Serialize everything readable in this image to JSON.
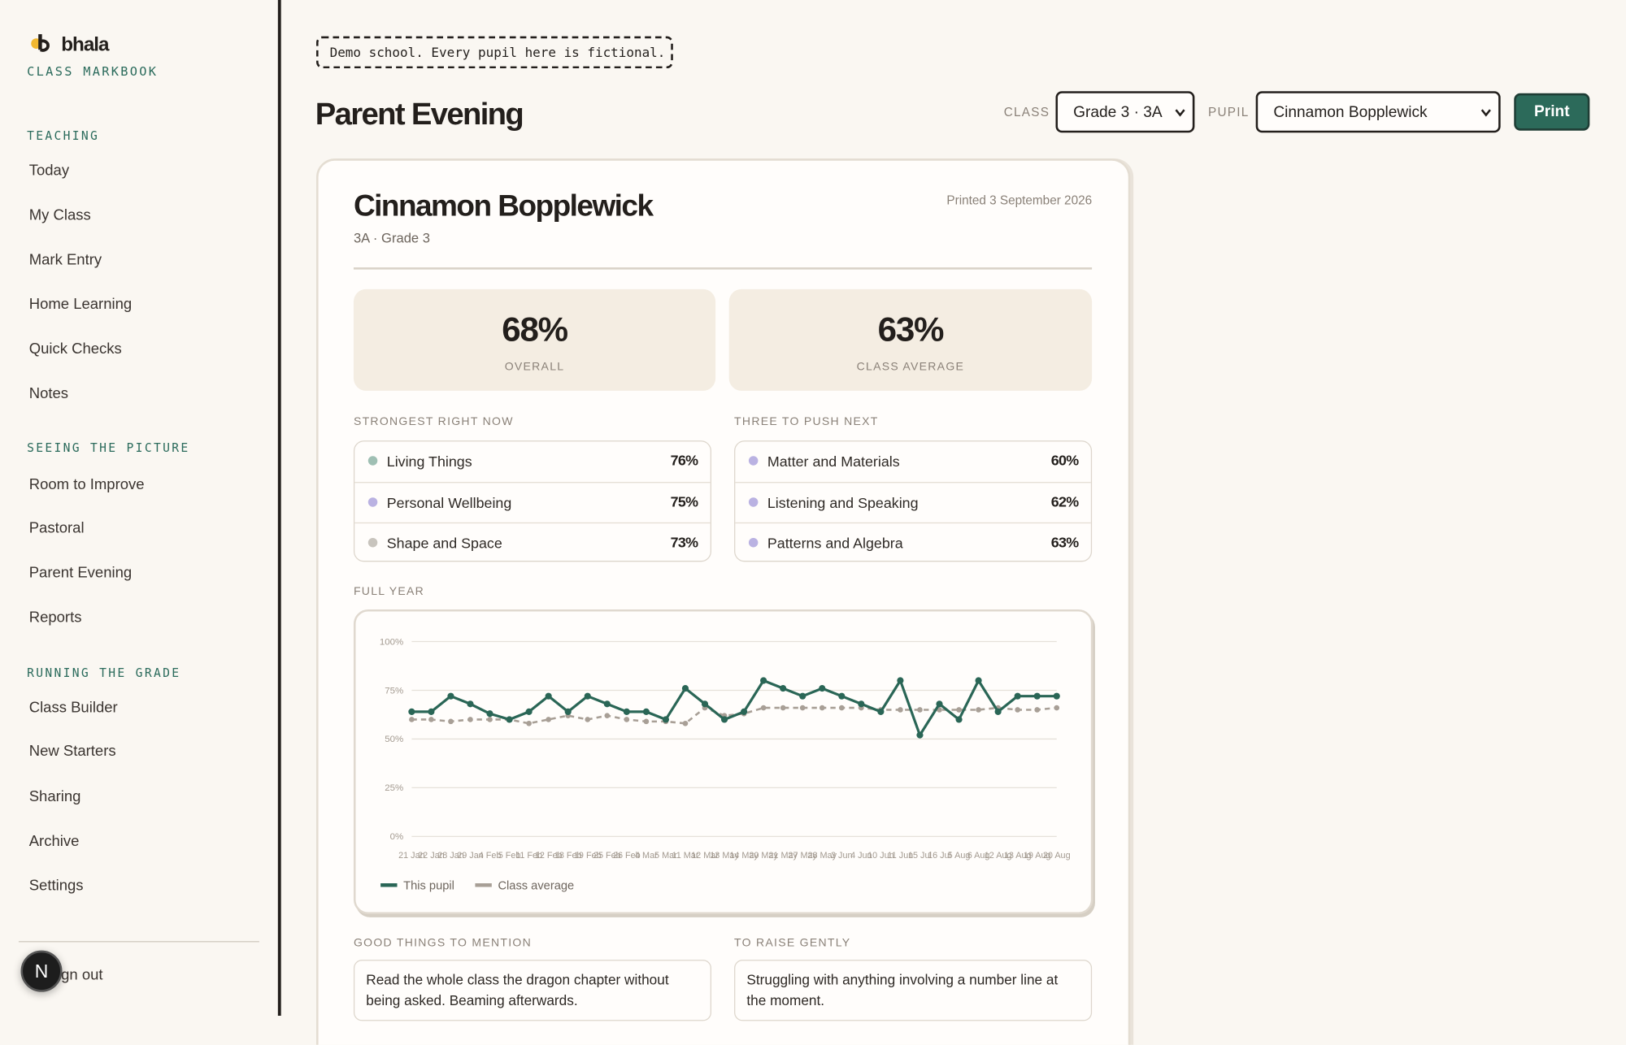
{
  "sidebar": {
    "brand": "bhala",
    "subtitle": "CLASS MARKBOOK",
    "sections": [
      {
        "heading": "TEACHING",
        "items": [
          "Today",
          "My Class",
          "Mark Entry",
          "Home Learning",
          "Quick Checks",
          "Notes"
        ]
      },
      {
        "heading": "SEEING THE PICTURE",
        "items": [
          "Room to Improve",
          "Pastoral",
          "Parent Evening",
          "Reports"
        ]
      },
      {
        "heading": "RUNNING THE GRADE",
        "items": [
          "Class Builder",
          "New Starters",
          "Sharing",
          "Archive",
          "Settings"
        ]
      }
    ],
    "sign_out": "Sign out",
    "dev_badge": "N"
  },
  "header": {
    "banner": "Demo school. Every pupil here is fictional.",
    "title": "Parent Evening",
    "class_label": "CLASS",
    "class_value": "Grade 3 · 3A",
    "pupil_label": "PUPIL",
    "pupil_value": "Cinnamon Bopplewick",
    "print": "Print"
  },
  "card": {
    "name": "Cinnamon Bopplewick",
    "group": "3A · Grade 3",
    "printed": "Printed 3 September 2026",
    "stats": [
      {
        "value": "68%",
        "label": "OVERALL"
      },
      {
        "value": "63%",
        "label": "CLASS AVERAGE"
      }
    ],
    "strongest": {
      "heading": "STRONGEST RIGHT NOW",
      "items": [
        {
          "name": "Living Things",
          "value": "76%",
          "color": "#9fbfb3"
        },
        {
          "name": "Personal Wellbeing",
          "value": "75%",
          "color": "#bab2e2"
        },
        {
          "name": "Shape and Space",
          "value": "73%",
          "color": "#c8c4bd"
        }
      ]
    },
    "push": {
      "heading": "THREE TO PUSH NEXT",
      "items": [
        {
          "name": "Matter and Materials",
          "value": "60%",
          "color": "#bab2e2"
        },
        {
          "name": "Listening and Speaking",
          "value": "62%",
          "color": "#bab2e2"
        },
        {
          "name": "Patterns and Algebra",
          "value": "63%",
          "color": "#bab2e2"
        }
      ]
    },
    "chart_heading": "FULL YEAR",
    "good": {
      "heading": "GOOD THINGS TO MENTION",
      "text": "Read the whole class the dragon chapter without being asked. Beaming afterwards."
    },
    "raise": {
      "heading": "TO RAISE GENTLY",
      "text": "Struggling with anything involving a number line at the moment."
    }
  },
  "chart_data": {
    "type": "line",
    "categories": [
      "21 Jan",
      "22 Jan",
      "28 Jan",
      "29 Jan",
      "4 Feb",
      "5 Feb",
      "11 Feb",
      "12 Feb",
      "18 Feb",
      "19 Feb",
      "25 Feb",
      "26 Feb",
      "4 Mar",
      "5 Mar",
      "11 Mar",
      "12 Mar",
      "13 May",
      "14 May",
      "20 May",
      "21 May",
      "27 May",
      "28 May",
      "3 Jun",
      "4 Jun",
      "10 Jun",
      "11 Jun",
      "15 Jul",
      "16 Jul",
      "5 Aug",
      "6 Aug",
      "12 Aug",
      "13 Aug",
      "19 Aug",
      "20 Aug"
    ],
    "series": [
      {
        "name": "This pupil",
        "color": "#2a6656",
        "dashed": false,
        "values": [
          64,
          64,
          72,
          68,
          63,
          60,
          64,
          72,
          64,
          72,
          68,
          64,
          64,
          60,
          76,
          68,
          60,
          64,
          80,
          76,
          72,
          76,
          72,
          68,
          64,
          80,
          52,
          68,
          60,
          80,
          64,
          72,
          72,
          72
        ]
      },
      {
        "name": "Class average",
        "color": "#a89f96",
        "dashed": true,
        "values": [
          60,
          60,
          59,
          60,
          60,
          60,
          58,
          60,
          62,
          60,
          62,
          60,
          59,
          59,
          58,
          66,
          62,
          63,
          66,
          66,
          66,
          66,
          66,
          66,
          65,
          65,
          65,
          65,
          65,
          65,
          66,
          65,
          65,
          66
        ]
      }
    ],
    "ylim": [
      0,
      100
    ],
    "yticks": [
      {
        "value": 0,
        "label": "0%"
      },
      {
        "value": 25,
        "label": "25%"
      },
      {
        "value": 50,
        "label": "50%"
      },
      {
        "value": 75,
        "label": "75%"
      },
      {
        "value": 100,
        "label": "100%"
      }
    ],
    "grid": true,
    "legend": "bottom-left"
  }
}
